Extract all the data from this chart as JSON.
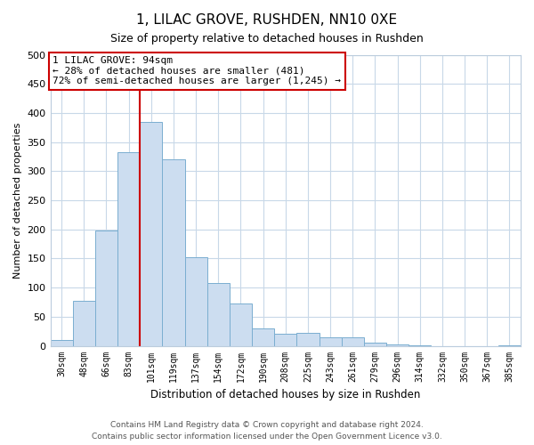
{
  "title": "1, LILAC GROVE, RUSHDEN, NN10 0XE",
  "subtitle": "Size of property relative to detached houses in Rushden",
  "xlabel": "Distribution of detached houses by size in Rushden",
  "ylabel": "Number of detached properties",
  "categories": [
    "30sqm",
    "48sqm",
    "66sqm",
    "83sqm",
    "101sqm",
    "119sqm",
    "137sqm",
    "154sqm",
    "172sqm",
    "190sqm",
    "208sqm",
    "225sqm",
    "243sqm",
    "261sqm",
    "279sqm",
    "296sqm",
    "314sqm",
    "332sqm",
    "350sqm",
    "367sqm",
    "385sqm"
  ],
  "values": [
    10,
    78,
    198,
    333,
    385,
    320,
    152,
    108,
    73,
    30,
    20,
    23,
    15,
    15,
    5,
    2,
    1,
    0,
    0,
    0,
    1
  ],
  "bar_color": "#ccddf0",
  "bar_edge_color": "#7aaed0",
  "highlight_index": 4,
  "highlight_color": "#cc0000",
  "ylim": [
    0,
    500
  ],
  "yticks": [
    0,
    50,
    100,
    150,
    200,
    250,
    300,
    350,
    400,
    450,
    500
  ],
  "annotation_title": "1 LILAC GROVE: 94sqm",
  "annotation_line1": "← 28% of detached houses are smaller (481)",
  "annotation_line2": "72% of semi-detached houses are larger (1,245) →",
  "footer1": "Contains HM Land Registry data © Crown copyright and database right 2024.",
  "footer2": "Contains public sector information licensed under the Open Government Licence v3.0.",
  "background_color": "#ffffff",
  "grid_color": "#c8d8e8"
}
